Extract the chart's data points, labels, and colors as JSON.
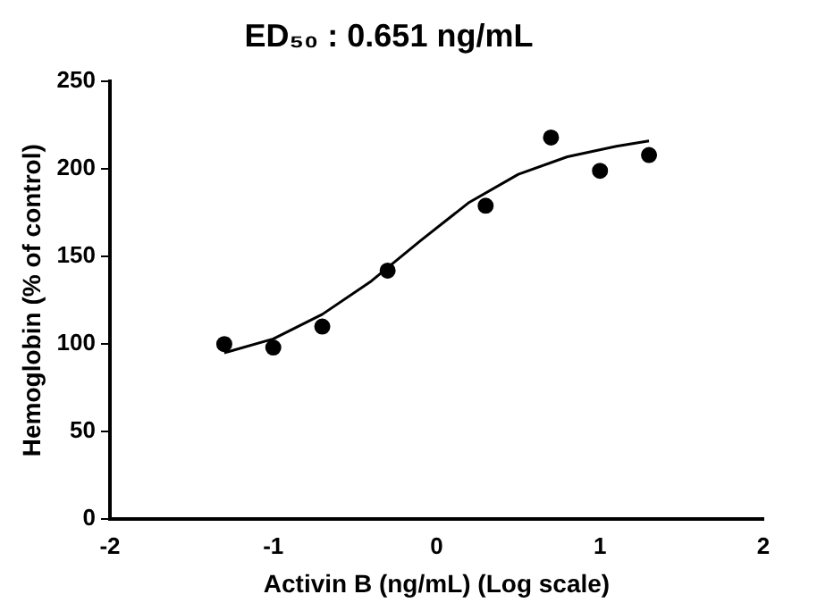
{
  "chart_data": {
    "type": "scatter",
    "title": "ED₅₀ : 0.651 ng/mL",
    "xlabel": "Activin B (ng/mL) (Log scale)",
    "ylabel": "Hemoglobin (% of control)",
    "xlim": [
      -2,
      2
    ],
    "xticks": [
      -2,
      -1,
      0,
      1,
      2
    ],
    "ylim": [
      0,
      250
    ],
    "yticks": [
      0,
      50,
      100,
      150,
      200,
      250
    ],
    "grid": false,
    "legend": false,
    "series": [
      {
        "type": "scatter",
        "color": "#000000",
        "marker": "circle",
        "x": [
          -1.3,
          -1.0,
          -0.7,
          -0.3,
          0.3,
          0.7,
          1.0,
          1.3
        ],
        "values": [
          100,
          98,
          110,
          142,
          179,
          218,
          199,
          208
        ]
      },
      {
        "type": "line",
        "color": "#000000",
        "marker": "none",
        "line_style": "solid",
        "x": [
          -1.3,
          -1.0,
          -0.7,
          -0.4,
          -0.1,
          0.2,
          0.5,
          0.8,
          1.1,
          1.3
        ],
        "values": [
          95,
          103,
          117,
          136,
          159,
          181,
          197,
          207,
          213,
          216
        ]
      }
    ]
  }
}
